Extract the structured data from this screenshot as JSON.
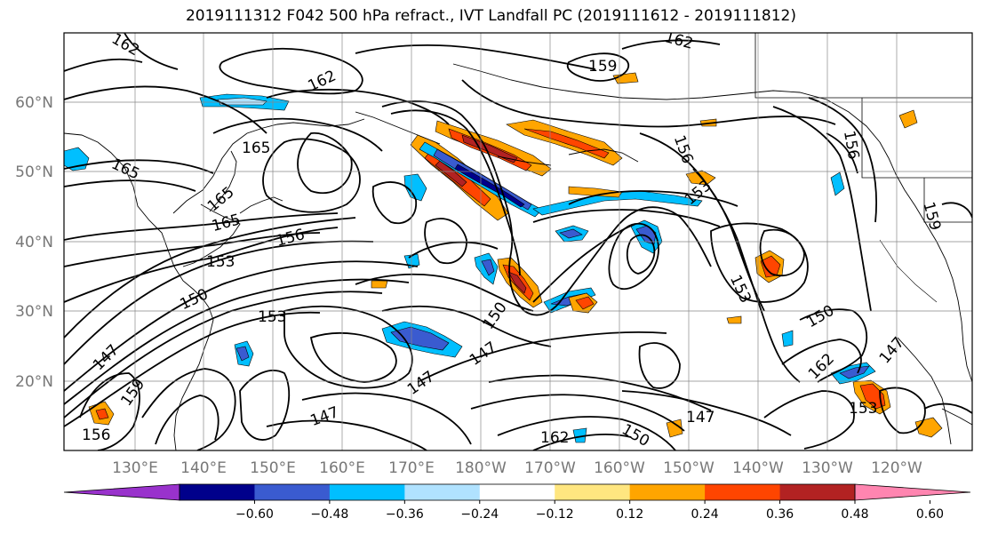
{
  "title": "2019111312 F042 500 hPa refract., IVT Landfall PC (2019111612 - 2019111812)",
  "lat_labels": [
    "60°N",
    "50°N",
    "40°N",
    "30°N",
    "20°N"
  ],
  "lon_labels": [
    "130°E",
    "140°E",
    "150°E",
    "160°E",
    "170°E",
    "180°W",
    "170°W",
    "160°W",
    "150°W",
    "140°W",
    "130°W",
    "120°W"
  ],
  "colorbar": {
    "colors": [
      "#9932cc",
      "#00008b",
      "#3a5bd0",
      "#00bfff",
      "#b0e2ff",
      "#ffffff",
      "#ffe680",
      "#ffa500",
      "#ff4500",
      "#b22222",
      "#ff85b0"
    ],
    "tick_labels": [
      "−0.60",
      "−0.48",
      "−0.36",
      "−0.24",
      "−0.12",
      "0.12",
      "0.24",
      "0.36",
      "0.48",
      "0.60"
    ]
  },
  "contour_labels": [
    "162",
    "162",
    "162",
    "159",
    "165",
    "165",
    "165",
    "165",
    "156",
    "156",
    "156",
    "153",
    "153",
    "153",
    "153",
    "150",
    "150",
    "150",
    "147",
    "147",
    "147",
    "147",
    "147",
    "162",
    "159",
    "159",
    "153",
    "150",
    "147",
    "162",
    "156"
  ]
}
